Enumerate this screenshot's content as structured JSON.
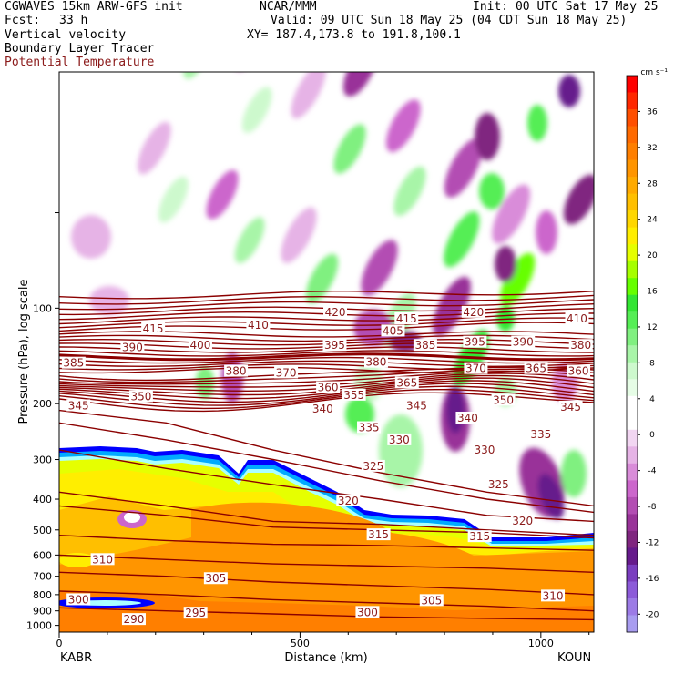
{
  "header": {
    "model": "CGWAVES 15km ARW-GFS init",
    "fcst_label": "Fcst:",
    "fcst_value": "33 h",
    "org": "NCAR/MMM",
    "init": "Init: 00 UTC Sat 17 May 25",
    "valid": "Valid: 09 UTC Sun 18 May 25 (04 CDT Sun 18 May 25)",
    "xy": "XY= 187.4,173.8 to 191.8,100.1",
    "field1": "Vertical velocity",
    "field2": "Boundary Layer Tracer",
    "field3": "Potential Temperature",
    "field3_color": "#8b1a1a"
  },
  "chart_data": {
    "type": "heatmap",
    "xlabel": "Distance (km)",
    "ylabel": "Pressure (hPa), log scale",
    "xlim": [
      0,
      1110
    ],
    "ylim": [
      1050,
      18
    ],
    "x_ticks": [
      0,
      500,
      1000
    ],
    "y_ticks": [
      100,
      200,
      300,
      400,
      500,
      600,
      700,
      800,
      900,
      1000
    ],
    "x_endpoints": {
      "left": "KABR",
      "right": "KOUN"
    },
    "colorbar": {
      "unit": "cm s⁻¹",
      "tick_labels": [
        36,
        32,
        28,
        24,
        20,
        16,
        12,
        8,
        4,
        0,
        -4,
        -8,
        -12,
        -16,
        -20
      ],
      "colors": [
        "#ff0000",
        "#ff2800",
        "#ff4f00",
        "#ff6a00",
        "#ff7f00",
        "#ff9500",
        "#ffaa00",
        "#ffbf00",
        "#ffd700",
        "#ffee00",
        "#e6ff00",
        "#a6ff00",
        "#66ff00",
        "#33e633",
        "#55ee55",
        "#80f080",
        "#a8f5a8",
        "#cdf9cd",
        "#e6fde6",
        "#ffffff",
        "#ffffff",
        "#f2d6f2",
        "#e6b3e6",
        "#d98cd9",
        "#cc66cc",
        "#b34db3",
        "#993399",
        "#802680",
        "#661a8c",
        "#7a3dbf",
        "#8c5ad9",
        "#9c7be6",
        "#a89cf0"
      ]
    },
    "theta_labels": [
      {
        "x": 195,
        "p": 116,
        "v": "415"
      },
      {
        "x": 413,
        "p": 113,
        "v": "410"
      },
      {
        "x": 573,
        "p": 103,
        "v": "420"
      },
      {
        "x": 860,
        "p": 103,
        "v": "420"
      },
      {
        "x": 1075,
        "p": 108,
        "v": "410"
      },
      {
        "x": 152,
        "p": 133,
        "v": "390"
      },
      {
        "x": 293,
        "p": 131,
        "v": "400"
      },
      {
        "x": 572,
        "p": 131,
        "v": "395"
      },
      {
        "x": 693,
        "p": 118,
        "v": "405"
      },
      {
        "x": 721,
        "p": 108,
        "v": "415"
      },
      {
        "x": 760,
        "p": 131,
        "v": "385"
      },
      {
        "x": 863,
        "p": 128,
        "v": "395"
      },
      {
        "x": 963,
        "p": 128,
        "v": "390"
      },
      {
        "x": 1083,
        "p": 131,
        "v": "380"
      },
      {
        "x": 30,
        "p": 149,
        "v": "385"
      },
      {
        "x": 367,
        "p": 158,
        "v": "380"
      },
      {
        "x": 471,
        "p": 160,
        "v": "370"
      },
      {
        "x": 658,
        "p": 148,
        "v": "380"
      },
      {
        "x": 865,
        "p": 155,
        "v": "370"
      },
      {
        "x": 990,
        "p": 155,
        "v": "365"
      },
      {
        "x": 1078,
        "p": 158,
        "v": "360"
      },
      {
        "x": 40,
        "p": 203,
        "v": "345"
      },
      {
        "x": 170,
        "p": 190,
        "v": "350"
      },
      {
        "x": 558,
        "p": 178,
        "v": "360"
      },
      {
        "x": 722,
        "p": 172,
        "v": "365"
      },
      {
        "x": 612,
        "p": 188,
        "v": "355"
      },
      {
        "x": 547,
        "p": 208,
        "v": "340"
      },
      {
        "x": 742,
        "p": 203,
        "v": "345"
      },
      {
        "x": 922,
        "p": 195,
        "v": "350"
      },
      {
        "x": 1062,
        "p": 205,
        "v": "345"
      },
      {
        "x": 643,
        "p": 238,
        "v": "335"
      },
      {
        "x": 848,
        "p": 222,
        "v": "340"
      },
      {
        "x": 706,
        "p": 260,
        "v": "330"
      },
      {
        "x": 1000,
        "p": 250,
        "v": "335"
      },
      {
        "x": 883,
        "p": 280,
        "v": "330"
      },
      {
        "x": 652,
        "p": 315,
        "v": "325"
      },
      {
        "x": 912,
        "p": 360,
        "v": "325"
      },
      {
        "x": 600,
        "p": 405,
        "v": "320"
      },
      {
        "x": 962,
        "p": 468,
        "v": "320"
      },
      {
        "x": 663,
        "p": 518,
        "v": "315"
      },
      {
        "x": 873,
        "p": 525,
        "v": "315"
      },
      {
        "x": 90,
        "p": 620,
        "v": "310"
      },
      {
        "x": 325,
        "p": 712,
        "v": "305"
      },
      {
        "x": 1025,
        "p": 808,
        "v": "310"
      },
      {
        "x": 773,
        "p": 835,
        "v": "305"
      },
      {
        "x": 40,
        "p": 830,
        "v": "300"
      },
      {
        "x": 640,
        "p": 910,
        "v": "300"
      },
      {
        "x": 283,
        "p": 915,
        "v": "295"
      },
      {
        "x": 155,
        "p": 958,
        "v": "290"
      }
    ]
  }
}
